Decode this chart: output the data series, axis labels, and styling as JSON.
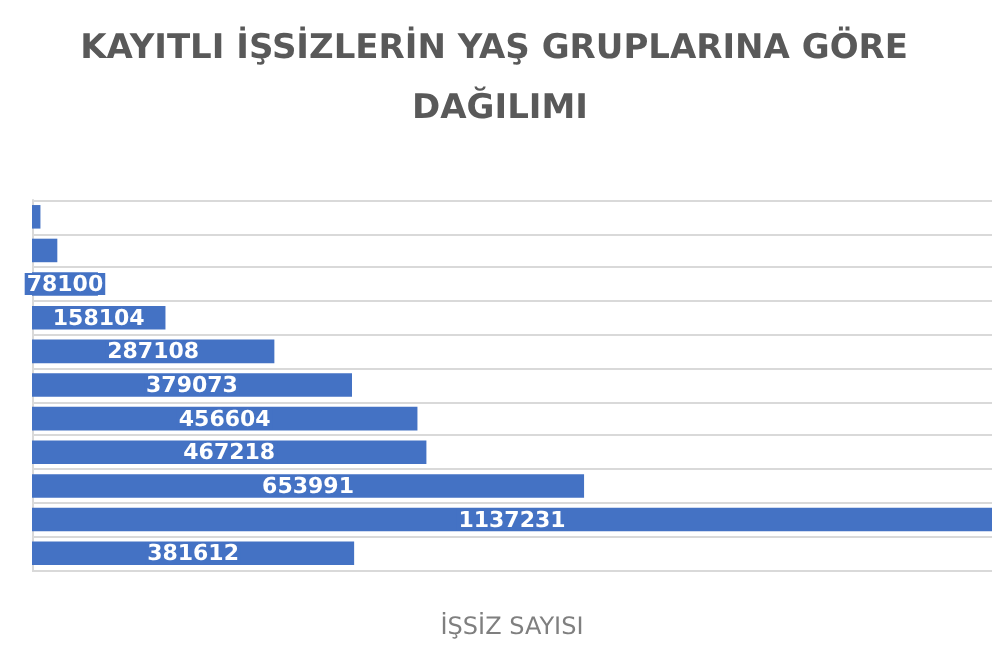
{
  "chart_data": {
    "type": "bar",
    "orientation": "horizontal",
    "title": "KAYITLI İŞSİZLERİN YAŞ GRUPLARINA GÖRE DAĞILIMI",
    "xlabel": "İŞSİZ SAYISI",
    "categories": [
      null,
      null,
      null,
      null,
      null,
      null,
      null,
      null,
      null,
      null,
      null
    ],
    "values": [
      10000,
      30000,
      78100,
      158104,
      287108,
      379073,
      456604,
      467218,
      653991,
      1137231,
      381612
    ],
    "value_labels": [
      null,
      null,
      "78100",
      "158104",
      "287108",
      "379073",
      "456604",
      "467218",
      "653991",
      "1137231",
      "381612"
    ],
    "color": "#4472c4",
    "grid": "y"
  }
}
